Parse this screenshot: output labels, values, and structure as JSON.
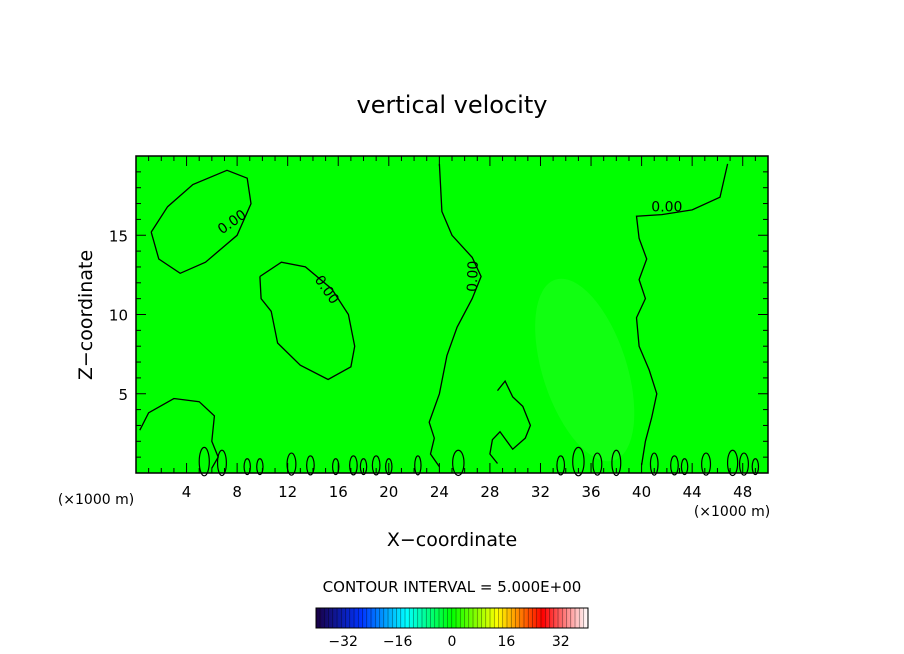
{
  "chart_data": {
    "type": "heatmap",
    "title": "vertical velocity",
    "xlabel": "X−coordinate",
    "ylabel": "Z−coordinate",
    "x_unit_left": "(×1000 m)",
    "x_unit_right": "(×1000 m)",
    "xlim": [
      0,
      50
    ],
    "ylim": [
      0,
      20
    ],
    "x_ticks": [
      "4",
      "8",
      "12",
      "16",
      "20",
      "24",
      "28",
      "32",
      "36",
      "40",
      "44",
      "48"
    ],
    "y_ticks": [
      "5",
      "10",
      "15"
    ],
    "x_tick_values": [
      4,
      8,
      12,
      16,
      20,
      24,
      28,
      32,
      36,
      40,
      44,
      48
    ],
    "y_tick_values": [
      5,
      10,
      15
    ],
    "field_color": "#00ff00",
    "contour_level": "0.00",
    "contour_labels": [
      "0.00",
      "0.00",
      "0.00",
      "0.00"
    ],
    "contour_label_positions": [
      [
        7.8,
        15.6
      ],
      [
        14.8,
        11.4
      ],
      [
        27.0,
        12.4
      ],
      [
        42.0,
        16.5
      ]
    ],
    "contour_interval_text": "CONTOUR INTERVAL = 5.000E+00",
    "colorbar": {
      "range": [
        -40,
        40
      ],
      "ticks": [
        "−32",
        "−16",
        "0",
        "16",
        "32"
      ],
      "tick_values": [
        -32,
        -16,
        0,
        16,
        32
      ],
      "colors": [
        "#1a0044",
        "#0033ff",
        "#00ffff",
        "#00ff00",
        "#ffff00",
        "#ff0000",
        "#ffffff"
      ]
    }
  }
}
